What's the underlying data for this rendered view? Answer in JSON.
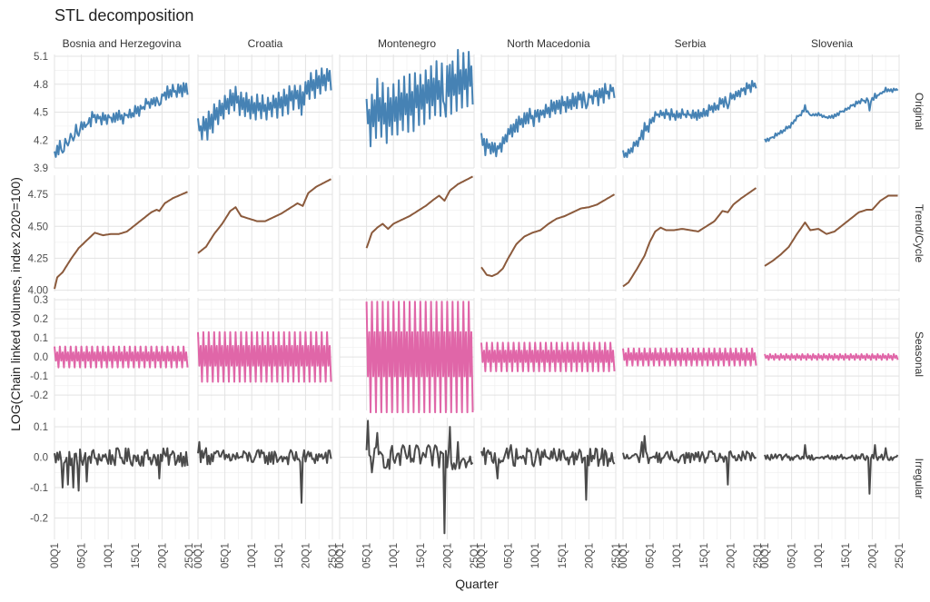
{
  "chart_data": {
    "type": "line",
    "title": "STL decomposition",
    "xlabel": "Quarter",
    "ylabel": "LOG(Chain linked volumes, index 2020=100)",
    "x_ticks": [
      "00Q1",
      "05Q1",
      "10Q1",
      "15Q1",
      "20Q1",
      "25Q1"
    ],
    "facet_columns": [
      "Bosnia and Herzegovina",
      "Croatia",
      "Montenegro",
      "North Macedonia",
      "Serbia",
      "Slovenia"
    ],
    "facet_rows": [
      {
        "name": "Original",
        "ylim": [
          3.9,
          5.12
        ],
        "ticks": [
          3.9,
          4.2,
          4.5,
          4.8,
          5.1
        ],
        "tick_labels": [
          "3.9",
          "4.2",
          "4.5",
          "4.8",
          "5.1"
        ],
        "color": "#4682b4"
      },
      {
        "name": "Trend/Cycle",
        "ylim": [
          3.99,
          4.9
        ],
        "ticks": [
          4.0,
          4.25,
          4.5,
          4.75
        ],
        "tick_labels": [
          "4.00",
          "4.25",
          "4.50",
          "4.75"
        ],
        "color": "#8b5a3c"
      },
      {
        "name": "Seasonal",
        "ylim": [
          -0.28,
          0.31
        ],
        "ticks": [
          -0.2,
          -0.1,
          0.0,
          0.1,
          0.2,
          0.3
        ],
        "tick_labels": [
          "-0.2",
          "-0.1",
          "0.0",
          "0.1",
          "0.2",
          "0.3"
        ],
        "color": "#e066a8"
      },
      {
        "name": "Irregular",
        "ylim": [
          -0.27,
          0.13
        ],
        "ticks": [
          -0.2,
          -0.1,
          0.0,
          0.1
        ],
        "tick_labels": [
          "-0.2",
          "-0.1",
          "0.0",
          "0.1"
        ],
        "color": "#4a4a4a"
      }
    ],
    "x_range": [
      0,
      25
    ],
    "series": {
      "Bosnia and Herzegovina": {
        "start": 0,
        "end": 24.75,
        "trend": [
          [
            0,
            4.01
          ],
          [
            0.5,
            4.1
          ],
          [
            1.5,
            4.14
          ],
          [
            3,
            4.24
          ],
          [
            4.5,
            4.33
          ],
          [
            6,
            4.39
          ],
          [
            7.5,
            4.45
          ],
          [
            9,
            4.43
          ],
          [
            10.5,
            4.44
          ],
          [
            12,
            4.44
          ],
          [
            13.5,
            4.46
          ],
          [
            15,
            4.51
          ],
          [
            16.5,
            4.56
          ],
          [
            18,
            4.61
          ],
          [
            19,
            4.63
          ],
          [
            19.5,
            4.62
          ],
          [
            20.5,
            4.68
          ],
          [
            22,
            4.72
          ],
          [
            24.75,
            4.77
          ]
        ],
        "seasonal_amp": 0.055,
        "irregular_spikes": [
          [
            1.5,
            -0.1
          ],
          [
            2.5,
            -0.09
          ],
          [
            3.5,
            -0.1
          ],
          [
            4.5,
            -0.11
          ],
          [
            6,
            -0.08
          ],
          [
            19.5,
            -0.07
          ]
        ],
        "irregular_noise": 0.03
      },
      "Croatia": {
        "start": 0,
        "end": 24.75,
        "trend": [
          [
            0,
            4.29
          ],
          [
            1.5,
            4.34
          ],
          [
            3,
            4.44
          ],
          [
            4.5,
            4.52
          ],
          [
            6,
            4.62
          ],
          [
            7,
            4.65
          ],
          [
            8,
            4.58
          ],
          [
            9.5,
            4.56
          ],
          [
            11,
            4.54
          ],
          [
            12.5,
            4.54
          ],
          [
            14,
            4.57
          ],
          [
            15.5,
            4.6
          ],
          [
            17,
            4.64
          ],
          [
            18.5,
            4.68
          ],
          [
            19.5,
            4.66
          ],
          [
            20.5,
            4.76
          ],
          [
            22,
            4.81
          ],
          [
            24.75,
            4.87
          ]
        ],
        "seasonal_amp": 0.13,
        "irregular_spikes": [
          [
            0.25,
            0.05
          ],
          [
            1.5,
            0.03
          ],
          [
            19.25,
            -0.15
          ]
        ],
        "irregular_noise": 0.025
      },
      "Montenegro": {
        "start": 5,
        "end": 24.75,
        "trend": [
          [
            5,
            4.33
          ],
          [
            6,
            4.45
          ],
          [
            7,
            4.49
          ],
          [
            8,
            4.52
          ],
          [
            9,
            4.48
          ],
          [
            10,
            4.52
          ],
          [
            11.5,
            4.55
          ],
          [
            13,
            4.58
          ],
          [
            14.5,
            4.62
          ],
          [
            16,
            4.66
          ],
          [
            17.5,
            4.71
          ],
          [
            18.5,
            4.74
          ],
          [
            19.5,
            4.7
          ],
          [
            20.5,
            4.78
          ],
          [
            22,
            4.83
          ],
          [
            24.75,
            4.89
          ]
        ],
        "seasonal_amp": 0.29,
        "irregular_spikes": [
          [
            5.25,
            0.12
          ],
          [
            6,
            -0.05
          ],
          [
            7,
            0.08
          ],
          [
            19.5,
            -0.25
          ],
          [
            20.5,
            0.1
          ],
          [
            22,
            0.05
          ]
        ],
        "irregular_noise": 0.04
      },
      "North Macedonia": {
        "start": 0,
        "end": 24.75,
        "trend": [
          [
            0,
            4.18
          ],
          [
            1,
            4.12
          ],
          [
            2,
            4.11
          ],
          [
            3,
            4.13
          ],
          [
            4,
            4.17
          ],
          [
            5,
            4.25
          ],
          [
            6.5,
            4.36
          ],
          [
            8,
            4.42
          ],
          [
            9.5,
            4.45
          ],
          [
            11,
            4.47
          ],
          [
            12.5,
            4.52
          ],
          [
            14,
            4.56
          ],
          [
            15.5,
            4.58
          ],
          [
            17,
            4.61
          ],
          [
            18.5,
            4.64
          ],
          [
            20,
            4.65
          ],
          [
            21.5,
            4.67
          ],
          [
            24.75,
            4.75
          ]
        ],
        "seasonal_amp": 0.075,
        "irregular_spikes": [
          [
            19.5,
            -0.14
          ],
          [
            3,
            -0.07
          ],
          [
            5.5,
            0.04
          ]
        ],
        "irregular_noise": 0.03
      },
      "Serbia": {
        "start": 0,
        "end": 24.75,
        "trend": [
          [
            0,
            4.03
          ],
          [
            1,
            4.06
          ],
          [
            2.5,
            4.16
          ],
          [
            4,
            4.27
          ],
          [
            5,
            4.38
          ],
          [
            6,
            4.46
          ],
          [
            7,
            4.49
          ],
          [
            8,
            4.47
          ],
          [
            9.5,
            4.47
          ],
          [
            11,
            4.48
          ],
          [
            12.5,
            4.47
          ],
          [
            14,
            4.46
          ],
          [
            15.5,
            4.5
          ],
          [
            17,
            4.54
          ],
          [
            18.5,
            4.62
          ],
          [
            19.5,
            4.61
          ],
          [
            20.5,
            4.67
          ],
          [
            22,
            4.72
          ],
          [
            24.75,
            4.8
          ]
        ],
        "seasonal_amp": 0.045,
        "irregular_spikes": [
          [
            4,
            0.07
          ],
          [
            3.5,
            0.05
          ],
          [
            19.5,
            -0.09
          ]
        ],
        "irregular_noise": 0.02
      },
      "Slovenia": {
        "start": 0,
        "end": 24.75,
        "trend": [
          [
            0,
            4.19
          ],
          [
            1.5,
            4.23
          ],
          [
            3,
            4.28
          ],
          [
            4.5,
            4.34
          ],
          [
            6,
            4.44
          ],
          [
            7.5,
            4.53
          ],
          [
            8.5,
            4.47
          ],
          [
            10,
            4.48
          ],
          [
            11.5,
            4.44
          ],
          [
            13,
            4.46
          ],
          [
            14.5,
            4.51
          ],
          [
            16,
            4.56
          ],
          [
            17.5,
            4.61
          ],
          [
            19,
            4.63
          ],
          [
            20,
            4.63
          ],
          [
            21.5,
            4.7
          ],
          [
            23,
            4.74
          ],
          [
            24.75,
            4.74
          ]
        ],
        "seasonal_amp": 0.015,
        "irregular_spikes": [
          [
            7.5,
            0.04
          ],
          [
            19.5,
            -0.12
          ],
          [
            20.5,
            0.04
          ],
          [
            22.5,
            0.03
          ]
        ],
        "irregular_noise": 0.01
      }
    }
  }
}
